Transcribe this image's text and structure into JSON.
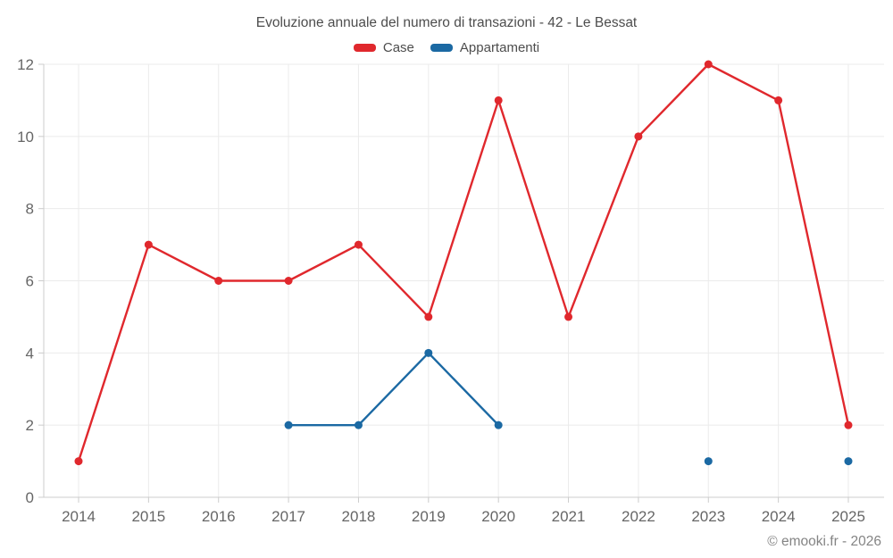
{
  "footer": {
    "credit": "© emooki.fr - 2026"
  },
  "chart_data": {
    "type": "line",
    "title": "Evoluzione annuale del numero di transazioni - 42 - Le Bessat",
    "x": [
      2014,
      2015,
      2016,
      2017,
      2018,
      2019,
      2020,
      2021,
      2022,
      2023,
      2024,
      2025
    ],
    "series": [
      {
        "name": "Case",
        "color": "#e0282d",
        "values": [
          1,
          7,
          6,
          6,
          7,
          5,
          11,
          5,
          10,
          12,
          11,
          2
        ]
      },
      {
        "name": "Appartamenti",
        "color": "#1b69a3",
        "values": [
          null,
          null,
          null,
          2,
          2,
          4,
          2,
          null,
          null,
          1,
          null,
          1
        ]
      }
    ],
    "ylim": [
      0,
      12
    ],
    "yticks": [
      0,
      2,
      4,
      6,
      8,
      10,
      12
    ],
    "grid": true,
    "legend_position": "top",
    "xlabel": "",
    "ylabel": ""
  }
}
